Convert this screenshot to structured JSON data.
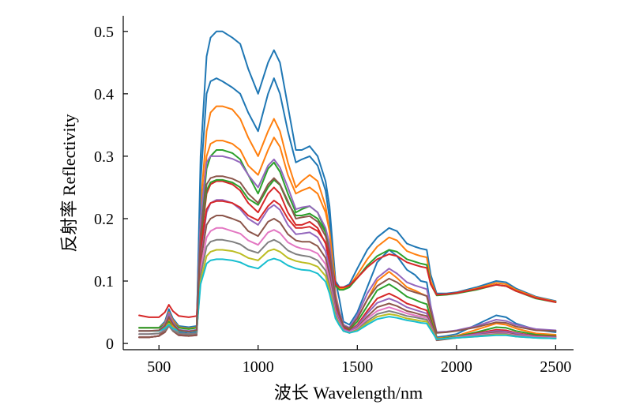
{
  "chart_data": {
    "type": "line",
    "title": "",
    "xlabel": "波长 Wavelength/nm",
    "ylabel": "反射率 Reflectivity",
    "xlim": [
      320,
      2590
    ],
    "ylim": [
      -0.01,
      0.525
    ],
    "x_ticks": [
      500,
      1000,
      1500,
      2000,
      2500
    ],
    "y_ticks": [
      0,
      0.1,
      0.2,
      0.3,
      0.4,
      0.5
    ],
    "x_tick_labels": [
      "500",
      "1000",
      "1500",
      "2000",
      "2500"
    ],
    "y_tick_labels": [
      "0",
      "0.1",
      "0.2",
      "0.3",
      "0.4",
      "0.5"
    ],
    "grid": false,
    "legend": "none",
    "palette": [
      "#1f77b4",
      "#ff7f0e",
      "#2ca02c",
      "#d62728",
      "#9467bd",
      "#8c564b",
      "#e377c2",
      "#7f7f7f",
      "#bcbd22",
      "#17becf"
    ],
    "x": [
      400,
      450,
      500,
      530,
      550,
      570,
      600,
      650,
      690,
      710,
      740,
      760,
      790,
      820,
      870,
      910,
      950,
      1000,
      1050,
      1080,
      1110,
      1150,
      1190,
      1220,
      1260,
      1300,
      1340,
      1360,
      1390,
      1410,
      1430,
      1460,
      1500,
      1550,
      1600,
      1660,
      1700,
      1750,
      1790,
      1820,
      1850,
      1870,
      1900,
      1950,
      2000,
      2100,
      2200,
      2250,
      2300,
      2400,
      2500
    ],
    "series": [
      {
        "values": [
          0.01,
          0.01,
          0.012,
          0.025,
          0.045,
          0.03,
          0.018,
          0.016,
          0.018,
          0.3,
          0.46,
          0.49,
          0.5,
          0.5,
          0.49,
          0.48,
          0.44,
          0.4,
          0.45,
          0.47,
          0.45,
          0.38,
          0.31,
          0.31,
          0.316,
          0.3,
          0.26,
          0.22,
          0.1,
          0.07,
          0.035,
          0.03,
          0.05,
          0.09,
          0.13,
          0.15,
          0.14,
          0.118,
          0.11,
          0.1,
          0.098,
          0.06,
          0.01,
          0.012,
          0.015,
          0.03,
          0.045,
          0.042,
          0.032,
          0.022,
          0.018
        ]
      },
      {
        "values": [
          0.01,
          0.01,
          0.012,
          0.022,
          0.04,
          0.027,
          0.016,
          0.014,
          0.016,
          0.22,
          0.34,
          0.37,
          0.38,
          0.38,
          0.375,
          0.36,
          0.33,
          0.3,
          0.34,
          0.36,
          0.34,
          0.29,
          0.25,
          0.26,
          0.27,
          0.26,
          0.22,
          0.18,
          0.08,
          0.05,
          0.03,
          0.025,
          0.04,
          0.07,
          0.1,
          0.115,
          0.105,
          0.09,
          0.085,
          0.08,
          0.076,
          0.05,
          0.008,
          0.01,
          0.012,
          0.022,
          0.032,
          0.03,
          0.024,
          0.016,
          0.014
        ]
      },
      {
        "values": [
          0.01,
          0.01,
          0.012,
          0.02,
          0.035,
          0.024,
          0.015,
          0.013,
          0.015,
          0.18,
          0.28,
          0.3,
          0.31,
          0.31,
          0.305,
          0.295,
          0.27,
          0.24,
          0.28,
          0.29,
          0.275,
          0.24,
          0.21,
          0.215,
          0.22,
          0.21,
          0.18,
          0.15,
          0.07,
          0.045,
          0.028,
          0.022,
          0.035,
          0.06,
          0.085,
          0.095,
          0.087,
          0.075,
          0.07,
          0.066,
          0.063,
          0.04,
          0.007,
          0.009,
          0.011,
          0.018,
          0.026,
          0.025,
          0.02,
          0.014,
          0.012
        ]
      },
      {
        "values": [
          0.01,
          0.01,
          0.012,
          0.02,
          0.032,
          0.022,
          0.014,
          0.012,
          0.014,
          0.16,
          0.24,
          0.255,
          0.26,
          0.26,
          0.255,
          0.245,
          0.225,
          0.21,
          0.24,
          0.25,
          0.24,
          0.21,
          0.19,
          0.19,
          0.195,
          0.185,
          0.16,
          0.13,
          0.06,
          0.04,
          0.025,
          0.02,
          0.03,
          0.052,
          0.072,
          0.08,
          0.074,
          0.064,
          0.06,
          0.056,
          0.053,
          0.035,
          0.006,
          0.008,
          0.01,
          0.016,
          0.022,
          0.021,
          0.017,
          0.012,
          0.011
        ]
      },
      {
        "values": [
          0.01,
          0.01,
          0.012,
          0.018,
          0.03,
          0.021,
          0.013,
          0.012,
          0.013,
          0.14,
          0.21,
          0.225,
          0.23,
          0.23,
          0.225,
          0.215,
          0.2,
          0.19,
          0.215,
          0.222,
          0.214,
          0.19,
          0.175,
          0.176,
          0.178,
          0.17,
          0.148,
          0.12,
          0.055,
          0.037,
          0.023,
          0.019,
          0.028,
          0.048,
          0.065,
          0.072,
          0.067,
          0.058,
          0.054,
          0.051,
          0.048,
          0.032,
          0.006,
          0.008,
          0.01,
          0.015,
          0.02,
          0.019,
          0.016,
          0.011,
          0.01
        ]
      },
      {
        "values": [
          0.01,
          0.01,
          0.012,
          0.018,
          0.028,
          0.02,
          0.013,
          0.012,
          0.013,
          0.13,
          0.19,
          0.2,
          0.205,
          0.205,
          0.2,
          0.195,
          0.18,
          0.172,
          0.195,
          0.2,
          0.194,
          0.175,
          0.165,
          0.163,
          0.163,
          0.156,
          0.137,
          0.11,
          0.05,
          0.034,
          0.021,
          0.017,
          0.025,
          0.043,
          0.058,
          0.064,
          0.06,
          0.052,
          0.049,
          0.046,
          0.044,
          0.03,
          0.005,
          0.007,
          0.009,
          0.013,
          0.018,
          0.017,
          0.014,
          0.01,
          0.009
        ]
      },
      {
        "values": [
          0.015,
          0.015,
          0.016,
          0.022,
          0.03,
          0.022,
          0.016,
          0.015,
          0.016,
          0.12,
          0.17,
          0.18,
          0.185,
          0.185,
          0.18,
          0.176,
          0.165,
          0.158,
          0.178,
          0.182,
          0.177,
          0.162,
          0.155,
          0.152,
          0.15,
          0.144,
          0.127,
          0.1,
          0.048,
          0.033,
          0.021,
          0.018,
          0.024,
          0.04,
          0.052,
          0.058,
          0.054,
          0.048,
          0.045,
          0.043,
          0.041,
          0.028,
          0.006,
          0.008,
          0.01,
          0.013,
          0.016,
          0.016,
          0.013,
          0.01,
          0.009
        ]
      },
      {
        "values": [
          0.015,
          0.015,
          0.016,
          0.021,
          0.028,
          0.021,
          0.016,
          0.015,
          0.016,
          0.11,
          0.155,
          0.163,
          0.166,
          0.166,
          0.163,
          0.159,
          0.15,
          0.145,
          0.162,
          0.166,
          0.161,
          0.149,
          0.143,
          0.141,
          0.139,
          0.133,
          0.117,
          0.093,
          0.045,
          0.031,
          0.02,
          0.017,
          0.022,
          0.036,
          0.047,
          0.052,
          0.049,
          0.044,
          0.042,
          0.04,
          0.038,
          0.026,
          0.006,
          0.008,
          0.009,
          0.012,
          0.015,
          0.015,
          0.012,
          0.009,
          0.008
        ]
      },
      {
        "values": [
          0.02,
          0.02,
          0.02,
          0.025,
          0.032,
          0.025,
          0.02,
          0.019,
          0.02,
          0.1,
          0.14,
          0.147,
          0.15,
          0.15,
          0.148,
          0.144,
          0.137,
          0.133,
          0.148,
          0.151,
          0.147,
          0.137,
          0.132,
          0.13,
          0.128,
          0.123,
          0.108,
          0.086,
          0.042,
          0.03,
          0.02,
          0.017,
          0.021,
          0.033,
          0.043,
          0.047,
          0.045,
          0.04,
          0.038,
          0.036,
          0.035,
          0.024,
          0.007,
          0.008,
          0.009,
          0.011,
          0.014,
          0.014,
          0.011,
          0.009,
          0.008
        ]
      },
      {
        "values": [
          0.02,
          0.02,
          0.02,
          0.024,
          0.03,
          0.024,
          0.02,
          0.019,
          0.02,
          0.095,
          0.128,
          0.133,
          0.135,
          0.135,
          0.133,
          0.13,
          0.124,
          0.12,
          0.133,
          0.136,
          0.133,
          0.125,
          0.12,
          0.118,
          0.117,
          0.112,
          0.099,
          0.08,
          0.04,
          0.029,
          0.02,
          0.017,
          0.02,
          0.03,
          0.039,
          0.043,
          0.041,
          0.037,
          0.035,
          0.033,
          0.032,
          0.022,
          0.007,
          0.008,
          0.009,
          0.011,
          0.013,
          0.013,
          0.011,
          0.009,
          0.008
        ]
      },
      {
        "values": [
          0.025,
          0.025,
          0.025,
          0.035,
          0.055,
          0.04,
          0.028,
          0.026,
          0.028,
          0.26,
          0.4,
          0.42,
          0.425,
          0.42,
          0.41,
          0.4,
          0.37,
          0.34,
          0.4,
          0.425,
          0.4,
          0.34,
          0.29,
          0.295,
          0.3,
          0.285,
          0.245,
          0.2,
          0.1,
          0.09,
          0.09,
          0.095,
          0.12,
          0.15,
          0.17,
          0.185,
          0.18,
          0.16,
          0.155,
          0.152,
          0.15,
          0.11,
          0.08,
          0.08,
          0.082,
          0.09,
          0.1,
          0.098,
          0.088,
          0.075,
          0.068
        ]
      },
      {
        "values": [
          0.025,
          0.025,
          0.025,
          0.032,
          0.05,
          0.037,
          0.026,
          0.024,
          0.026,
          0.2,
          0.3,
          0.32,
          0.325,
          0.325,
          0.32,
          0.31,
          0.285,
          0.27,
          0.31,
          0.33,
          0.315,
          0.27,
          0.24,
          0.245,
          0.25,
          0.24,
          0.21,
          0.18,
          0.095,
          0.088,
          0.088,
          0.092,
          0.11,
          0.135,
          0.155,
          0.17,
          0.165,
          0.148,
          0.143,
          0.14,
          0.138,
          0.1,
          0.078,
          0.079,
          0.081,
          0.088,
          0.097,
          0.095,
          0.086,
          0.074,
          0.067
        ]
      },
      {
        "values": [
          0.025,
          0.025,
          0.025,
          0.03,
          0.045,
          0.034,
          0.025,
          0.023,
          0.025,
          0.17,
          0.245,
          0.258,
          0.262,
          0.262,
          0.258,
          0.25,
          0.232,
          0.222,
          0.25,
          0.262,
          0.254,
          0.225,
          0.205,
          0.205,
          0.208,
          0.2,
          0.178,
          0.155,
          0.092,
          0.086,
          0.086,
          0.09,
          0.105,
          0.125,
          0.14,
          0.15,
          0.147,
          0.135,
          0.131,
          0.128,
          0.126,
          0.095,
          0.077,
          0.078,
          0.08,
          0.086,
          0.094,
          0.092,
          0.084,
          0.072,
          0.066
        ]
      },
      {
        "values": [
          0.045,
          0.042,
          0.042,
          0.05,
          0.062,
          0.052,
          0.044,
          0.042,
          0.044,
          0.15,
          0.215,
          0.225,
          0.228,
          0.228,
          0.225,
          0.218,
          0.205,
          0.197,
          0.22,
          0.229,
          0.222,
          0.2,
          0.185,
          0.185,
          0.187,
          0.18,
          0.162,
          0.142,
          0.095,
          0.09,
          0.09,
          0.093,
          0.105,
          0.122,
          0.135,
          0.143,
          0.14,
          0.13,
          0.126,
          0.123,
          0.121,
          0.095,
          0.078,
          0.079,
          0.081,
          0.087,
          0.094,
          0.092,
          0.084,
          0.073,
          0.066
        ]
      },
      {
        "values": [
          0.02,
          0.02,
          0.021,
          0.03,
          0.048,
          0.034,
          0.022,
          0.02,
          0.022,
          0.2,
          0.29,
          0.3,
          0.3,
          0.3,
          0.296,
          0.29,
          0.27,
          0.25,
          0.285,
          0.295,
          0.282,
          0.25,
          0.215,
          0.218,
          0.22,
          0.21,
          0.185,
          0.16,
          0.075,
          0.05,
          0.03,
          0.025,
          0.045,
          0.08,
          0.105,
          0.12,
          0.112,
          0.098,
          0.093,
          0.09,
          0.087,
          0.06,
          0.018,
          0.019,
          0.021,
          0.028,
          0.038,
          0.036,
          0.03,
          0.023,
          0.021
        ]
      },
      {
        "values": [
          0.02,
          0.02,
          0.021,
          0.028,
          0.042,
          0.031,
          0.021,
          0.019,
          0.021,
          0.175,
          0.255,
          0.265,
          0.268,
          0.268,
          0.264,
          0.258,
          0.24,
          0.225,
          0.255,
          0.265,
          0.255,
          0.228,
          0.2,
          0.202,
          0.204,
          0.195,
          0.172,
          0.148,
          0.07,
          0.047,
          0.028,
          0.024,
          0.04,
          0.07,
          0.092,
          0.104,
          0.098,
          0.086,
          0.082,
          0.079,
          0.076,
          0.052,
          0.017,
          0.018,
          0.02,
          0.026,
          0.034,
          0.033,
          0.027,
          0.021,
          0.02
        ]
      }
    ]
  }
}
